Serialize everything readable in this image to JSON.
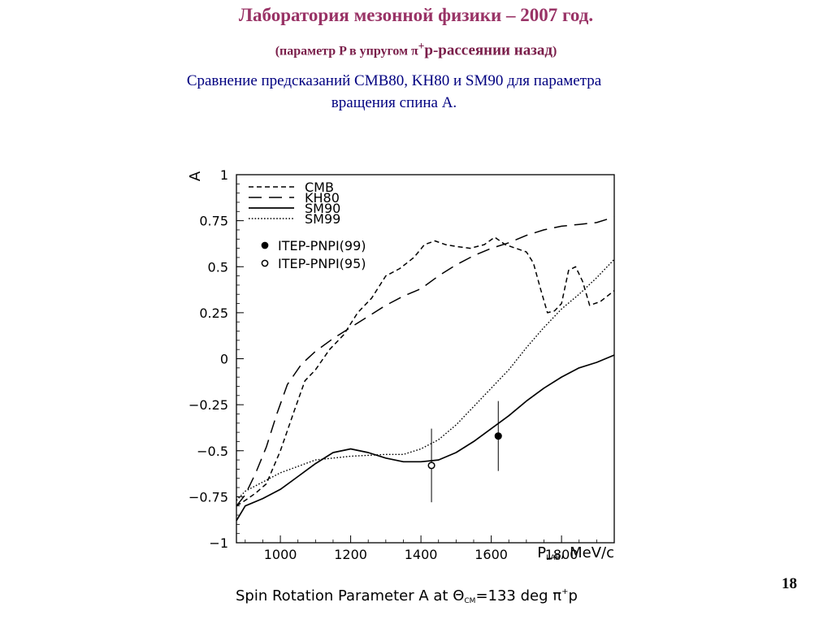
{
  "slide": {
    "title": "Лаборатория мезонной физики – 2007 год.",
    "subtitle_pre": "(параметр P в упругом π",
    "subtitle_sup": "+",
    "subtitle_mid": "p-рассеянии назад",
    "subtitle_post": ")",
    "description_line1": "Сравнение предсказаний CMB80, KH80 и SM90 для параметра",
    "description_line2": "вращения спина A.",
    "page_number": "18",
    "title_color": "#993366",
    "subtitle_color": "#7a1e4a",
    "description_color": "#000080"
  },
  "chart_data": {
    "type": "line",
    "title": "Spin Rotation Parameter A at Θ=133 deg π⁺p",
    "caption": {
      "pre": "Spin Rotation Parameter A at Θ",
      "sub": "CM",
      "mid": "=133 deg π",
      "sup": "+",
      "post": "p"
    },
    "xlabel": {
      "main": "P",
      "sub": "LAB",
      "unit": ", MeV/c"
    },
    "ylabel": "A",
    "xlim": [
      875,
      1950
    ],
    "ylim": [
      -1,
      1
    ],
    "xticks": [
      {
        "value": 1000,
        "label": "1000"
      },
      {
        "value": 1200,
        "label": "1200"
      },
      {
        "value": 1400,
        "label": "1400"
      },
      {
        "value": 1600,
        "label": "1600"
      },
      {
        "value": 1800,
        "label": "1800"
      }
    ],
    "yticks": [
      {
        "value": -1,
        "label": "−1"
      },
      {
        "value": -0.75,
        "label": "−0.75"
      },
      {
        "value": -0.5,
        "label": "−0.5"
      },
      {
        "value": -0.25,
        "label": "−0.25"
      },
      {
        "value": 0,
        "label": "0"
      },
      {
        "value": 0.25,
        "label": "0.25"
      },
      {
        "value": 0.5,
        "label": "0.5"
      },
      {
        "value": 0.75,
        "label": "0.75"
      },
      {
        "value": 1,
        "label": "1"
      }
    ],
    "series": [
      {
        "name": "CMB",
        "style": "short-dash",
        "x": [
          875,
          900,
          930,
          960,
          1000,
          1040,
          1070,
          1100,
          1140,
          1180,
          1220,
          1260,
          1300,
          1340,
          1380,
          1410,
          1440,
          1470,
          1500,
          1540,
          1580,
          1610,
          1640,
          1670,
          1700,
          1720,
          1740,
          1760,
          1780,
          1800,
          1820,
          1840,
          1860,
          1880,
          1910,
          1950
        ],
        "y": [
          -0.8,
          -0.77,
          -0.73,
          -0.68,
          -0.5,
          -0.28,
          -0.12,
          -0.06,
          0.05,
          0.13,
          0.25,
          0.33,
          0.45,
          0.49,
          0.55,
          0.62,
          0.64,
          0.62,
          0.61,
          0.6,
          0.62,
          0.66,
          0.62,
          0.6,
          0.58,
          0.52,
          0.38,
          0.25,
          0.26,
          0.3,
          0.48,
          0.5,
          0.42,
          0.29,
          0.31,
          0.37
        ]
      },
      {
        "name": "KH80",
        "style": "long-dash",
        "x": [
          875,
          900,
          930,
          960,
          990,
          1020,
          1060,
          1100,
          1150,
          1200,
          1250,
          1300,
          1350,
          1400,
          1450,
          1500,
          1550,
          1600,
          1650,
          1700,
          1750,
          1800,
          1850,
          1900,
          1950
        ],
        "y": [
          -0.8,
          -0.74,
          -0.62,
          -0.48,
          -0.3,
          -0.14,
          -0.03,
          0.04,
          0.11,
          0.17,
          0.23,
          0.29,
          0.34,
          0.38,
          0.45,
          0.51,
          0.56,
          0.6,
          0.63,
          0.67,
          0.7,
          0.72,
          0.73,
          0.74,
          0.77
        ]
      },
      {
        "name": "SM90",
        "style": "solid",
        "x": [
          875,
          900,
          950,
          1000,
          1050,
          1100,
          1150,
          1200,
          1250,
          1300,
          1350,
          1400,
          1450,
          1500,
          1550,
          1600,
          1650,
          1700,
          1750,
          1800,
          1850,
          1900,
          1950
        ],
        "y": [
          -0.88,
          -0.8,
          -0.76,
          -0.71,
          -0.64,
          -0.57,
          -0.51,
          -0.49,
          -0.51,
          -0.54,
          -0.56,
          -0.56,
          -0.55,
          -0.51,
          -0.45,
          -0.38,
          -0.31,
          -0.23,
          -0.16,
          -0.1,
          -0.05,
          -0.02,
          0.02
        ]
      },
      {
        "name": "SM99",
        "style": "dotted",
        "x": [
          875,
          900,
          1000,
          1100,
          1200,
          1300,
          1350,
          1400,
          1450,
          1500,
          1550,
          1600,
          1650,
          1700,
          1750,
          1800,
          1850,
          1900,
          1950
        ],
        "y": [
          -0.77,
          -0.72,
          -0.62,
          -0.55,
          -0.53,
          -0.52,
          -0.52,
          -0.49,
          -0.44,
          -0.36,
          -0.26,
          -0.16,
          -0.06,
          0.06,
          0.17,
          0.27,
          0.35,
          0.44,
          0.54
        ]
      }
    ],
    "points": [
      {
        "name": "ITEP-PNPI(99)",
        "marker": "filled",
        "x": 1620,
        "y": -0.42,
        "err_low": -0.61,
        "err_high": -0.23
      },
      {
        "name": "ITEP-PNPI(95)",
        "marker": "open",
        "x": 1430,
        "y": -0.58,
        "err_low": -0.78,
        "err_high": -0.38
      }
    ],
    "legend": {
      "position": "top-left",
      "entries": [
        {
          "label": "CMB",
          "kind": "line",
          "style": "short-dash"
        },
        {
          "label": "KH80",
          "kind": "line",
          "style": "long-dash"
        },
        {
          "label": "SM90",
          "kind": "line",
          "style": "solid"
        },
        {
          "label": "SM99",
          "kind": "line",
          "style": "dotted"
        },
        {
          "label": "ITEP-PNPI(99)",
          "kind": "marker",
          "marker": "filled"
        },
        {
          "label": "ITEP-PNPI(95)",
          "kind": "marker",
          "marker": "open"
        }
      ]
    },
    "grid": false
  }
}
